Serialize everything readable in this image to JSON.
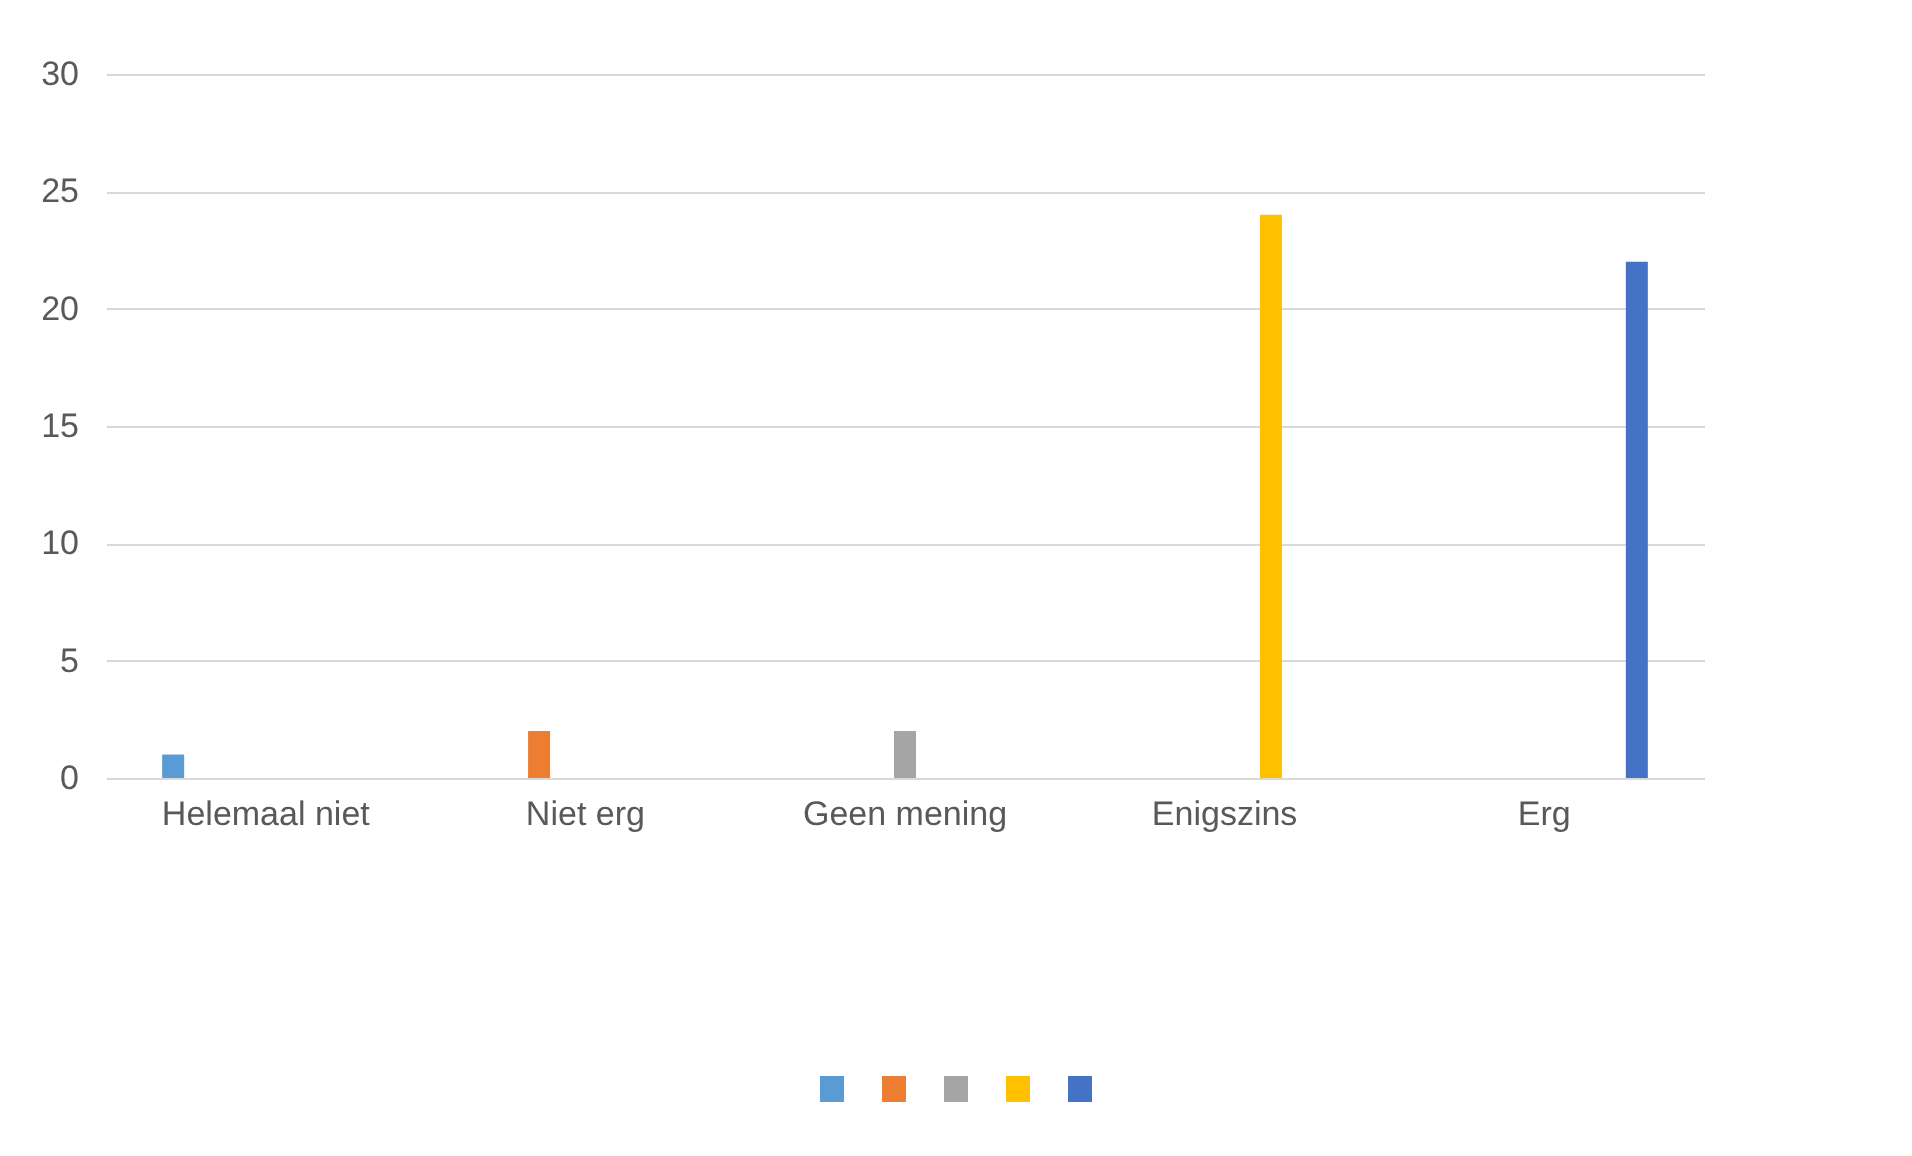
{
  "chart_data": {
    "type": "bar",
    "categories": [
      "Helemaal niet",
      "Niet erg",
      "Geen mening",
      "Enigszins",
      "Erg"
    ],
    "series": [
      {
        "color": "#5b9bd5",
        "values": [
          1,
          null,
          null,
          null,
          null
        ]
      },
      {
        "color": "#ed7d31",
        "values": [
          null,
          2,
          null,
          null,
          null
        ]
      },
      {
        "color": "#a5a5a5",
        "values": [
          null,
          null,
          2,
          null,
          null
        ]
      },
      {
        "color": "#ffc000",
        "values": [
          null,
          null,
          null,
          24,
          null
        ]
      },
      {
        "color": "#4472c4",
        "values": [
          null,
          null,
          null,
          null,
          22
        ]
      }
    ],
    "ylim": [
      0,
      30
    ],
    "yticks": [
      0,
      5,
      10,
      15,
      20,
      25,
      30
    ],
    "grid": "y"
  }
}
